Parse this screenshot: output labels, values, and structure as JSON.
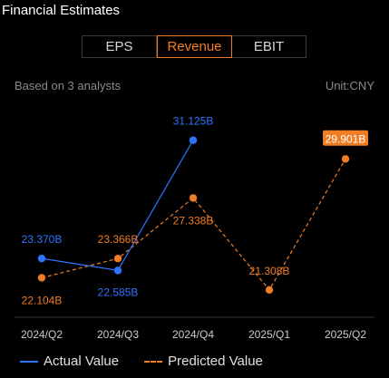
{
  "title": "Financial Estimates",
  "tabs": [
    {
      "label": "EPS",
      "active": false
    },
    {
      "label": "Revenue",
      "active": true
    },
    {
      "label": "EBIT",
      "active": false
    }
  ],
  "subheader": {
    "analysts": "Based on 3 analysts",
    "unit": "Unit:CNY"
  },
  "legend": {
    "actual": "Actual Value",
    "predicted": "Predicted Value"
  },
  "colors": {
    "actual": "#2f74ff",
    "predicted": "#f07c24",
    "axis_text": "#cccccc"
  },
  "chart_data": {
    "type": "line",
    "categories": [
      "2024/Q2",
      "2024/Q3",
      "2024/Q4",
      "2025/Q1",
      "2025/Q2"
    ],
    "series": [
      {
        "name": "Actual Value",
        "values": [
          23.37,
          22.585,
          31.125,
          null,
          null
        ],
        "labels": [
          "23.370B",
          "22.585B",
          "31.125B",
          "",
          ""
        ]
      },
      {
        "name": "Predicted Value",
        "values": [
          22.104,
          23.366,
          27.338,
          21.308,
          29.901
        ],
        "labels": [
          "22.104B",
          "23.366B",
          "27.338B",
          "21.308B",
          "29.901B"
        ]
      }
    ],
    "highlight_label_index": 4
  }
}
